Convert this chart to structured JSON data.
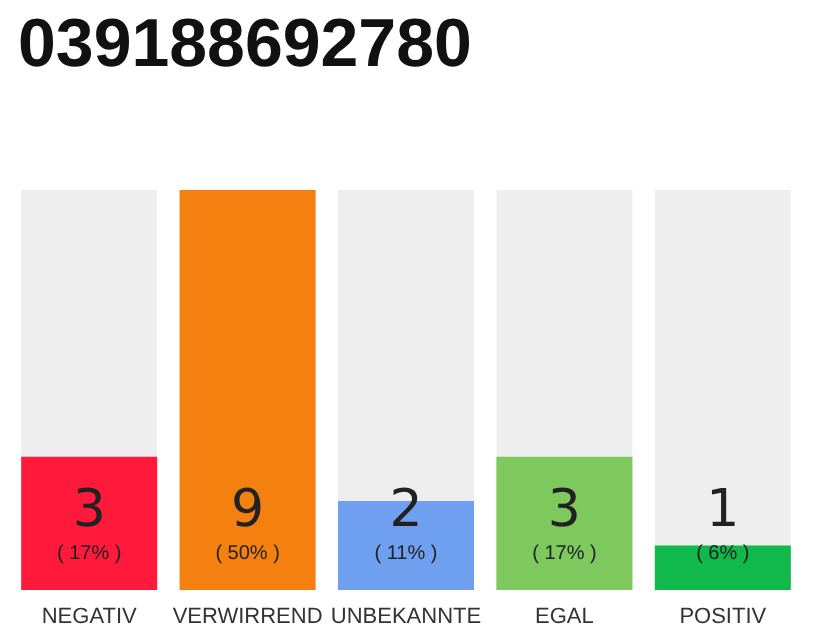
{
  "chart_data": {
    "type": "bar",
    "title": "039188692780",
    "categories": [
      "NEGATIV",
      "VERWIRREND",
      "UNBEKANNTE",
      "EGAL",
      "POSITIV"
    ],
    "values": [
      3,
      9,
      2,
      3,
      1
    ],
    "colors": [
      "#ff1a3c",
      "#f4800f",
      "#6fa0ef",
      "#7dc95e",
      "#11b84a"
    ],
    "value_labels": [
      "3\n( 17% )",
      "9\n( 50% )",
      "2\n( 11% )",
      "3\n( 17% )",
      "1\n( 6% )"
    ]
  }
}
